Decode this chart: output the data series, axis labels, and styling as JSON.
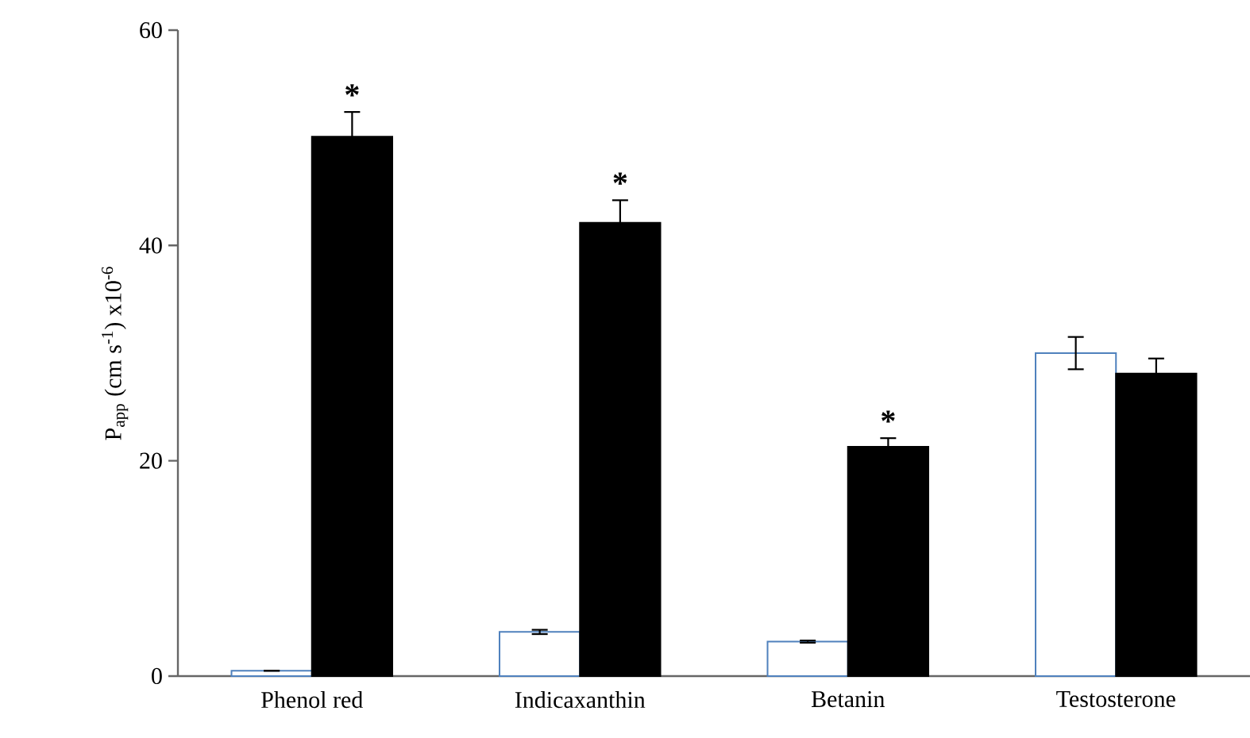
{
  "chart_data": {
    "type": "bar",
    "ylabel": "P$_{app}$ (cm s$^{-1}$) x10$^{-6}$",
    "categories": [
      "Phenol red",
      "Indicaxanthin",
      "Betanin",
      "Testosterone"
    ],
    "series": [
      {
        "color": "#ffffff",
        "values": [
          0.5,
          4.1,
          3.2,
          30.0
        ],
        "errors": [
          null,
          0.2,
          0.1,
          1.5
        ]
      },
      {
        "color": "#000000",
        "values": [
          50.1,
          42.1,
          21.3,
          28.1
        ],
        "errors": [
          2.3,
          2.1,
          0.8,
          1.4
        ]
      }
    ],
    "ylim": [
      0,
      60
    ],
    "yticks": [
      0,
      20,
      40,
      60
    ],
    "grid": false,
    "annotations": [
      "*",
      "*",
      "*"
    ]
  }
}
